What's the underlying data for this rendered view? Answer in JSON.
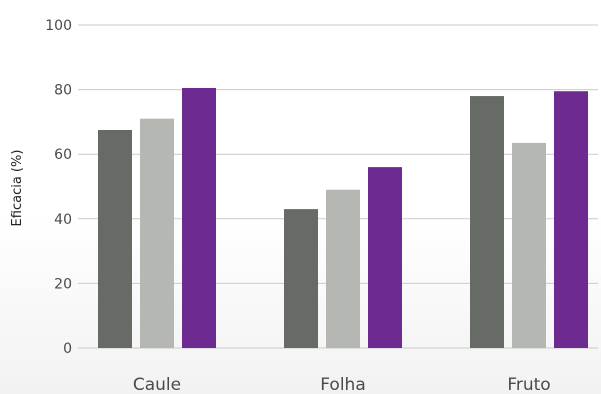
{
  "chart_data": {
    "type": "bar",
    "title": "",
    "xlabel": "",
    "ylabel": "Eficacia (%)",
    "ylim": [
      0,
      100
    ],
    "yticks": [
      0,
      20,
      40,
      60,
      80,
      100
    ],
    "grid": true,
    "legend": "none",
    "categories": [
      "Caule",
      "Folha",
      "Fruto"
    ],
    "series": [
      {
        "color": "#676b66",
        "values": [
          67.5,
          43,
          78
        ]
      },
      {
        "color": "#b4b7b2",
        "values": [
          71,
          49,
          63.5
        ]
      },
      {
        "color": "#6d2a90",
        "values": [
          80.5,
          56,
          79.5
        ]
      }
    ]
  }
}
